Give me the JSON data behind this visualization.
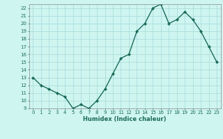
{
  "x": [
    0,
    1,
    2,
    3,
    4,
    5,
    6,
    7,
    8,
    9,
    10,
    11,
    12,
    13,
    14,
    15,
    16,
    17,
    18,
    19,
    20,
    21,
    22,
    23
  ],
  "y": [
    13,
    12,
    11.5,
    11,
    10.5,
    9,
    9.5,
    9,
    10,
    11.5,
    13.5,
    15.5,
    16,
    19,
    20,
    22,
    22.5,
    20,
    20.5,
    21.5,
    20.5,
    19,
    17,
    15
  ],
  "xlabel": "Humidex (Indice chaleur)",
  "line_color": "#1a6b5a",
  "marker": "D",
  "marker_size": 2,
  "bg_color": "#cff5f0",
  "grid_color": "#aadddd",
  "ylim": [
    9,
    22.5
  ],
  "xlim": [
    -0.5,
    23.5
  ],
  "yticks": [
    9,
    10,
    11,
    12,
    13,
    14,
    15,
    16,
    17,
    18,
    19,
    20,
    21,
    22
  ],
  "xticks": [
    0,
    1,
    2,
    3,
    4,
    5,
    6,
    7,
    8,
    9,
    10,
    11,
    12,
    13,
    14,
    15,
    16,
    17,
    18,
    19,
    20,
    21,
    22,
    23
  ],
  "xlabel_fontsize": 6.0,
  "tick_fontsize": 5.0,
  "linewidth": 1.0
}
